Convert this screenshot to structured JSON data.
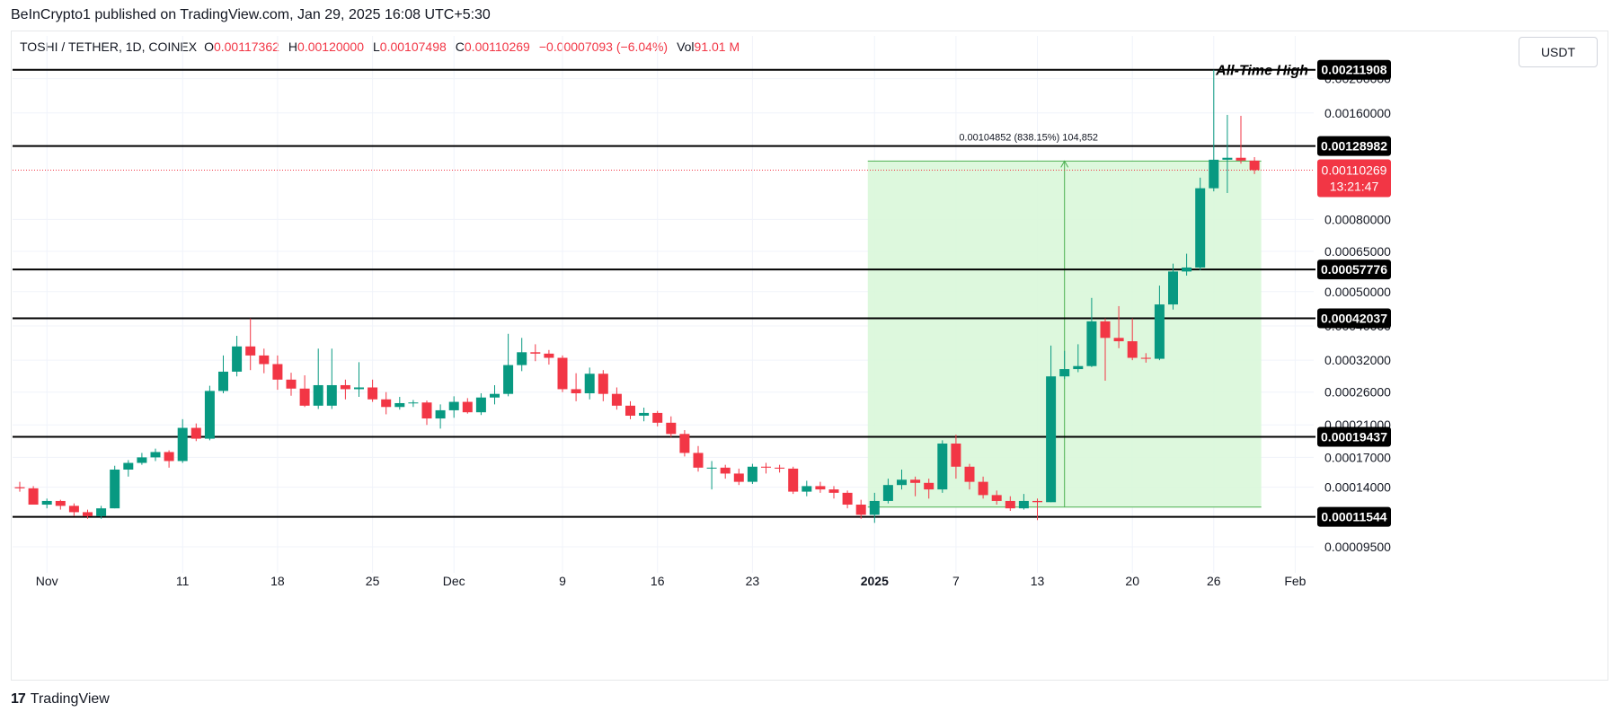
{
  "header": {
    "publisher_line": "BeInCrypto1 published on TradingView.com, Jan 29, 2025 16:08 UTC+5:30"
  },
  "legend": {
    "symbol": "TOSHI / TETHER, 1D, COINEX",
    "o_label": "O",
    "o_value": "0.00117362",
    "h_label": "H",
    "h_value": "0.00120000",
    "l_label": "L",
    "l_value": "0.00107498",
    "c_label": "C",
    "c_value": "0.00110269",
    "change": "−0.00007093 (−6.04%)",
    "vol_label": "Vol",
    "vol_value": "91.01 M"
  },
  "currency_button": "USDT",
  "footer": {
    "logo": "17",
    "brand": "TradingView"
  },
  "colors": {
    "up": "#089981",
    "down": "#f23645",
    "range_fill": "#d9f7d9",
    "range_line": "#4caf50",
    "level": "#000000"
  },
  "chart_data": {
    "type": "candlestick",
    "y_scale": "log",
    "ylim": [
      8.5e-05,
      0.00235
    ],
    "y_ticks": [
      "0.00200000",
      "0.00160000",
      "0.00080000",
      "0.00065000",
      "0.00050000",
      "0.00040000",
      "0.00032000",
      "0.00026000",
      "0.00021000",
      "0.00017000",
      "0.00014000",
      "0.00009500"
    ],
    "x_ticks": [
      {
        "label": "Nov",
        "idx": 2
      },
      {
        "label": "11",
        "idx": 12
      },
      {
        "label": "18",
        "idx": 19
      },
      {
        "label": "25",
        "idx": 26
      },
      {
        "label": "Dec",
        "idx": 32
      },
      {
        "label": "9",
        "idx": 40
      },
      {
        "label": "16",
        "idx": 47
      },
      {
        "label": "23",
        "idx": 54
      },
      {
        "label": "2025",
        "idx": 63,
        "bold": true
      },
      {
        "label": "7",
        "idx": 69
      },
      {
        "label": "13",
        "idx": 75
      },
      {
        "label": "20",
        "idx": 82
      },
      {
        "label": "26",
        "idx": 88
      },
      {
        "label": "Feb",
        "idx": 94
      }
    ],
    "levels": [
      {
        "value": 0.00211908,
        "label": "0.00211908",
        "annotation": "All-Time High"
      },
      {
        "value": 0.00128982,
        "label": "0.00128982"
      },
      {
        "value": 0.00057776,
        "label": "0.00057776"
      },
      {
        "value": 0.00042037,
        "label": "0.00042037"
      },
      {
        "value": 0.00019437,
        "label": "0.00019437"
      },
      {
        "value": 0.00011544,
        "label": "0.00011544"
      }
    ],
    "current_price": {
      "label": "0.00110269",
      "countdown": "13:21:47",
      "value": 0.00110269
    },
    "price_range": {
      "start_idx": 63,
      "end_idx": 91,
      "low": 0.000123,
      "high": 0.00117,
      "label": "0.00104852 (838.15%) 104,852",
      "arrow_idx": 77
    },
    "candles": [
      [
        0.00014,
        0.000139,
        0.000136,
        0.000145
      ],
      [
        0.000139,
        0.000125,
        0.000125,
        0.000141
      ],
      [
        0.000125,
        0.000128,
        0.000122,
        0.00013
      ],
      [
        0.000128,
        0.000124,
        0.000121,
        0.000129
      ],
      [
        0.000124,
        0.000119,
        0.000116,
        0.000126
      ],
      [
        0.000119,
        0.000116,
        0.000114,
        0.000121
      ],
      [
        0.000116,
        0.000122,
        0.000114,
        0.000124
      ],
      [
        0.000122,
        0.000157,
        0.000122,
        0.000161
      ],
      [
        0.000157,
        0.000164,
        0.00015,
        0.000167
      ],
      [
        0.000164,
        0.00017,
        0.000162,
        0.000175
      ],
      [
        0.00017,
        0.000176,
        0.000166,
        0.00018
      ],
      [
        0.000176,
        0.000166,
        0.000159,
        0.000178
      ],
      [
        0.000166,
        0.000206,
        0.000164,
        0.000218
      ],
      [
        0.000206,
        0.000192,
        0.000189,
        0.000212
      ],
      [
        0.000192,
        0.000262,
        0.00019,
        0.000271
      ],
      [
        0.000262,
        0.000297,
        0.000258,
        0.00033
      ],
      [
        0.000297,
        0.00035,
        0.000288,
        0.000375
      ],
      [
        0.00035,
        0.00033,
        0.0003,
        0.00042
      ],
      [
        0.00033,
        0.000312,
        0.000294,
        0.000345
      ],
      [
        0.000312,
        0.000282,
        0.000264,
        0.00033
      ],
      [
        0.000282,
        0.000266,
        0.000254,
        0.000295
      ],
      [
        0.000266,
        0.000238,
        0.000236,
        0.00029
      ],
      [
        0.000238,
        0.000272,
        0.000233,
        0.000345
      ],
      [
        0.000238,
        0.000272,
        0.000233,
        0.000345
      ],
      [
        0.000272,
        0.000265,
        0.000248,
        0.000282
      ],
      [
        0.000265,
        0.000268,
        0.000252,
        0.000316
      ],
      [
        0.000268,
        0.000248,
        0.000244,
        0.000282
      ],
      [
        0.000248,
        0.000236,
        0.000225,
        0.00026
      ],
      [
        0.000236,
        0.000242,
        0.000232,
        0.000252
      ],
      [
        0.000242,
        0.000243,
        0.000236,
        0.000247
      ],
      [
        0.000243,
        0.000219,
        0.00021,
        0.000246
      ],
      [
        0.000219,
        0.000231,
        0.000205,
        0.00024
      ],
      [
        0.000231,
        0.000244,
        0.00022,
        0.000253
      ],
      [
        0.000244,
        0.000228,
        0.000226,
        0.00025
      ],
      [
        0.000228,
        0.000251,
        0.000224,
        0.000258
      ],
      [
        0.000251,
        0.000257,
        0.00024,
        0.000272
      ],
      [
        0.000257,
        0.00031,
        0.000253,
        0.00038
      ],
      [
        0.00031,
        0.000337,
        0.000298,
        0.00037
      ],
      [
        0.000337,
        0.000334,
        0.000318,
        0.000355
      ],
      [
        0.000334,
        0.000325,
        0.000311,
        0.000342
      ],
      [
        0.000325,
        0.000265,
        0.00026,
        0.00033
      ],
      [
        0.000265,
        0.000258,
        0.000245,
        0.000294
      ],
      [
        0.000258,
        0.000293,
        0.000248,
        0.000305
      ],
      [
        0.000293,
        0.000257,
        0.000245,
        0.0003
      ],
      [
        0.000257,
        0.000238,
        0.000232,
        0.000268
      ],
      [
        0.000238,
        0.000223,
        0.000218,
        0.000245
      ],
      [
        0.000223,
        0.000227,
        0.000215,
        0.000235
      ],
      [
        0.000227,
        0.000213,
        0.000208,
        0.00023
      ],
      [
        0.000213,
        0.000198,
        0.000194,
        0.000222
      ],
      [
        0.000198,
        0.000175,
        0.000171,
        0.000203
      ],
      [
        0.000175,
        0.000159,
        0.000155,
        0.000183
      ],
      [
        0.000159,
        0.000159,
        0.000138,
        0.000166
      ],
      [
        0.000159,
        0.000153,
        0.000148,
        0.000162
      ],
      [
        0.000153,
        0.000145,
        0.000142,
        0.000158
      ],
      [
        0.000145,
        0.00016,
        0.000143,
        0.000163
      ],
      [
        0.00016,
        0.000159,
        0.000153,
        0.000164
      ],
      [
        0.000159,
        0.000158,
        0.000154,
        0.000162
      ],
      [
        0.000158,
        0.000136,
        0.000134,
        0.00016
      ],
      [
        0.000136,
        0.000141,
        0.000132,
        0.000146
      ],
      [
        0.000141,
        0.000138,
        0.000135,
        0.000145
      ],
      [
        0.000138,
        0.000135,
        0.00013,
        0.000141
      ],
      [
        0.000135,
        0.000125,
        0.000122,
        0.000137
      ],
      [
        0.000125,
        0.000117,
        0.000114,
        0.000129
      ],
      [
        0.000117,
        0.000128,
        0.000111,
        0.000135
      ],
      [
        0.000128,
        0.000142,
        0.000126,
        0.000148
      ],
      [
        0.000142,
        0.000147,
        0.000138,
        0.000157
      ],
      [
        0.000147,
        0.000144,
        0.000132,
        0.00015
      ],
      [
        0.000144,
        0.000138,
        0.00013,
        0.000148
      ],
      [
        0.000138,
        0.000186,
        0.000135,
        0.00019
      ],
      [
        0.000186,
        0.00016,
        0.000148,
        0.000197
      ],
      [
        0.00016,
        0.000145,
        0.000138,
        0.000163
      ],
      [
        0.000145,
        0.000133,
        0.00013,
        0.00015
      ],
      [
        0.000133,
        0.000128,
        0.000125,
        0.000137
      ],
      [
        0.000128,
        0.000122,
        0.00012,
        0.000132
      ],
      [
        0.000122,
        0.000128,
        0.000121,
        0.000134
      ],
      [
        0.000128,
        0.000127,
        0.000113,
        0.00013
      ],
      [
        0.000127,
        0.000288,
        0.000127,
        0.000352
      ],
      [
        0.000288,
        0.000302,
        0.000283,
        0.00034
      ],
      [
        0.000302,
        0.000308,
        0.000296,
        0.000355
      ],
      [
        0.000308,
        0.000412,
        0.000306,
        0.00048
      ],
      [
        0.000412,
        0.00037,
        0.00028,
        0.00042
      ],
      [
        0.00037,
        0.000362,
        0.000346,
        0.000455
      ],
      [
        0.000362,
        0.000325,
        0.00032,
        0.00042
      ],
      [
        0.000325,
        0.000323,
        0.000315,
        0.000335
      ],
      [
        0.000323,
        0.00046,
        0.00032,
        0.00052
      ],
      [
        0.00046,
        0.00057,
        0.000445,
        0.0006
      ],
      [
        0.00057,
        0.000585,
        0.000555,
        0.00064
      ],
      [
        0.000585,
        0.00098,
        0.000575,
        0.00105
      ],
      [
        0.00098,
        0.00118,
        0.00096,
        0.002119
      ],
      [
        0.00118,
        0.001195,
        0.00095,
        0.00158
      ],
      [
        0.001195,
        0.001173,
        0.00115,
        0.00157
      ],
      [
        0.001173,
        0.001103,
        0.001075,
        0.0012
      ]
    ]
  }
}
